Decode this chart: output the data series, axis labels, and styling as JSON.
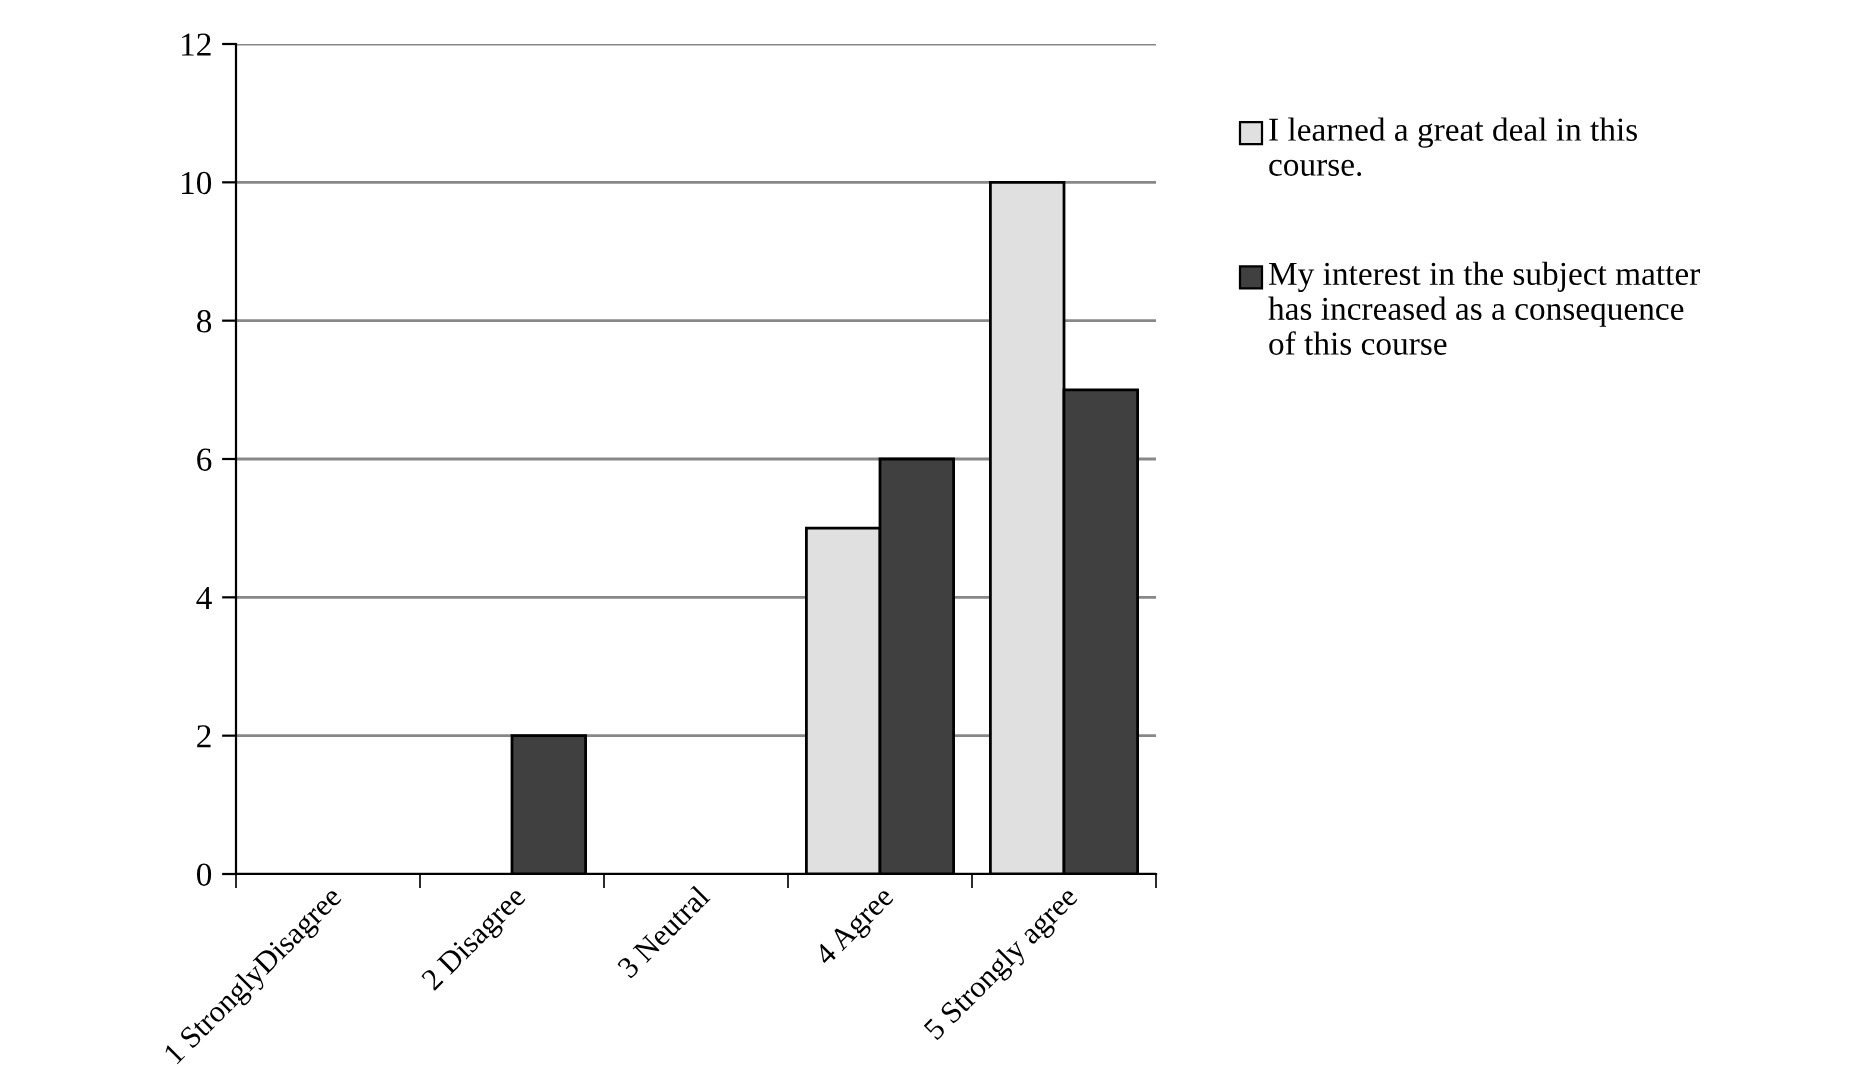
{
  "chart_data": {
    "type": "bar",
    "categories": [
      "1 StronglyDisagree",
      "2 Disagree",
      "3 Neutral",
      "4 Agree",
      "5 Strongly agree"
    ],
    "series": [
      {
        "name": "I learned a great deal in this course.",
        "color": "#e0e0e0",
        "values": [
          0,
          0,
          0,
          5,
          10
        ]
      },
      {
        "name": "My interest in the subject matter has increased as a consequence of this course",
        "color": "#404040",
        "values": [
          0,
          2,
          0,
          6,
          7
        ]
      }
    ],
    "ylim": [
      0,
      12
    ],
    "yticks": [
      0,
      2,
      4,
      6,
      8,
      10,
      12
    ],
    "grid": "y",
    "legend": "right"
  }
}
